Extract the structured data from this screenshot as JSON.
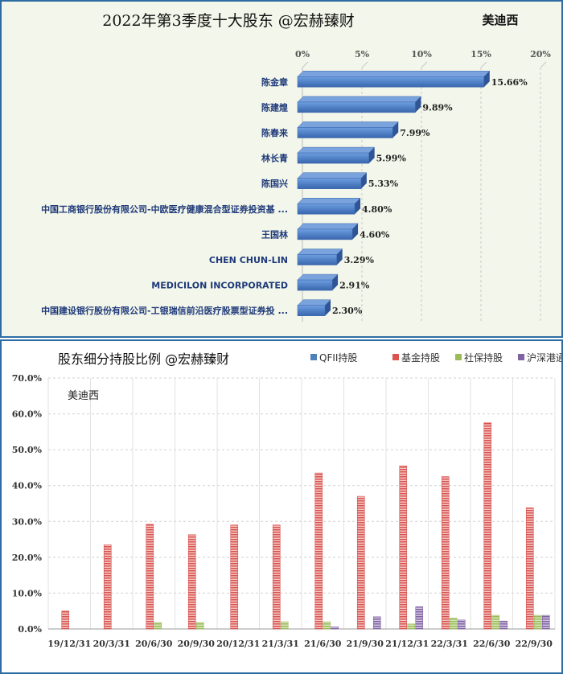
{
  "top_chart": {
    "title": "2022年第3季度十大股东 @宏赫臻财",
    "corner_label": "美迪西",
    "colors": {
      "bar": "#4f7fc4",
      "bar_dark": "#2f5597",
      "bar_top": "#7aa3dd",
      "grid": "#c8c8c8"
    }
  },
  "bottom_chart": {
    "title": "股东细分持股比例 @宏赫臻财",
    "watermark": "美迪西",
    "colors": {
      "QFII": "#4f81bd",
      "fund": "#d9534f",
      "social": "#9bbb59",
      "hk": "#8064a2",
      "grid": "#d0d0d0"
    }
  },
  "chart_data": [
    {
      "type": "bar",
      "orientation": "horizontal",
      "title": "2022年第3季度十大股东 @宏赫臻财",
      "categories": [
        "陈金章",
        "陈建煌",
        "陈春来",
        "林长青",
        "陈国兴",
        "中国工商银行股份有限公司-中欧医疗健康混合型证券投资基 ...",
        "王国林",
        "CHEN CHUN-LIN",
        "MEDICILON INCORPORATED",
        "中国建设银行股份有限公司-工银瑞信前沿医疗股票型证券投 ..."
      ],
      "values": [
        15.66,
        9.89,
        7.99,
        5.99,
        5.33,
        4.8,
        4.6,
        3.29,
        2.91,
        2.3
      ],
      "value_labels": [
        "15.66%",
        "9.89%",
        "7.99%",
        "5.99%",
        "5.33%",
        "4.80%",
        "4.60%",
        "3.29%",
        "2.91%",
        "2.30%"
      ],
      "xlim": [
        0,
        20
      ],
      "xticks": [
        0,
        5,
        10,
        15,
        20
      ],
      "xtick_labels": [
        "0%",
        "5%",
        "10%",
        "15%",
        "20%"
      ],
      "grid": true
    },
    {
      "type": "bar",
      "title": "股东细分持股比例 @宏赫臻财",
      "categories": [
        "19/12/31",
        "20/3/31",
        "20/6/30",
        "20/9/30",
        "20/12/31",
        "21/3/31",
        "21/6/30",
        "21/9/30",
        "21/12/31",
        "22/3/31",
        "22/6/30",
        "22/9/30"
      ],
      "series": [
        {
          "name": "QFII持股",
          "key": "QFII",
          "values": [
            0,
            0,
            0,
            0,
            0,
            0,
            0,
            0,
            0,
            0,
            0,
            0
          ]
        },
        {
          "name": "基金持股",
          "key": "fund",
          "values": [
            5.0,
            23.5,
            29.2,
            26.3,
            29.0,
            29.0,
            43.5,
            37.0,
            45.5,
            42.5,
            57.5,
            33.8
          ]
        },
        {
          "name": "社保持股",
          "key": "social",
          "values": [
            0,
            0,
            1.8,
            1.8,
            0,
            2.0,
            2.0,
            0,
            1.4,
            3.0,
            3.8,
            3.8
          ]
        },
        {
          "name": "沪深港通",
          "key": "hk",
          "values": [
            0,
            0,
            0,
            0,
            0,
            0,
            0.6,
            3.4,
            6.2,
            2.5,
            2.2,
            3.8
          ]
        }
      ],
      "ylim": [
        0,
        70
      ],
      "yticks": [
        0,
        10,
        20,
        30,
        40,
        50,
        60,
        70
      ],
      "ytick_labels": [
        "0.0%",
        "10.0%",
        "20.0%",
        "30.0%",
        "40.0%",
        "50.0%",
        "60.0%",
        "70.0%"
      ],
      "legend_position": "top-right",
      "grid": true
    }
  ]
}
